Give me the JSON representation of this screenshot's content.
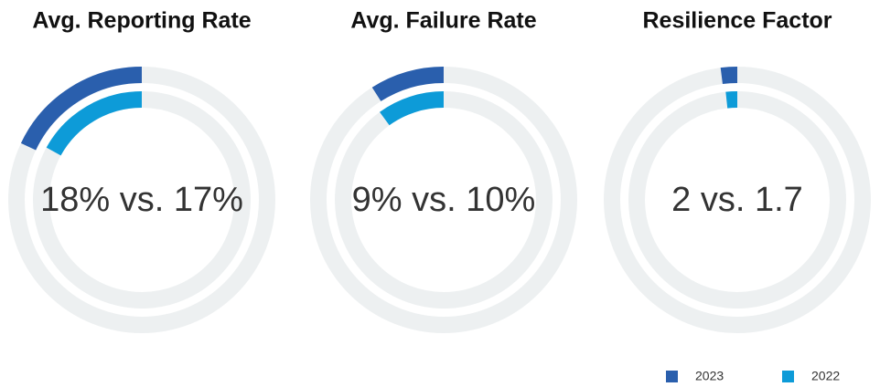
{
  "chart_data": [
    {
      "type": "radial_bar",
      "title": "Avg. Reporting Rate",
      "center_label": "18% vs. 17%",
      "ylim": [
        0,
        100
      ],
      "series": [
        {
          "name": "2023",
          "color": "#2a5fad",
          "values": [
            18
          ]
        },
        {
          "name": "2022",
          "color": "#0d9bd8",
          "values": [
            17
          ]
        }
      ]
    },
    {
      "type": "radial_bar",
      "title": "Avg. Failure Rate",
      "center_label": "9% vs. 10%",
      "ylim": [
        0,
        100
      ],
      "series": [
        {
          "name": "2023",
          "color": "#2a5fad",
          "values": [
            9
          ]
        },
        {
          "name": "2022",
          "color": "#0d9bd8",
          "values": [
            10
          ]
        }
      ]
    },
    {
      "type": "radial_bar",
      "title": "Resilience Factor",
      "center_label": "2 vs. 1.7",
      "ylim": [
        0,
        100
      ],
      "series": [
        {
          "name": "2023",
          "color": "#2a5fad",
          "values": [
            2
          ]
        },
        {
          "name": "2022",
          "color": "#0d9bd8",
          "values": [
            1.7
          ]
        }
      ]
    }
  ]
}
